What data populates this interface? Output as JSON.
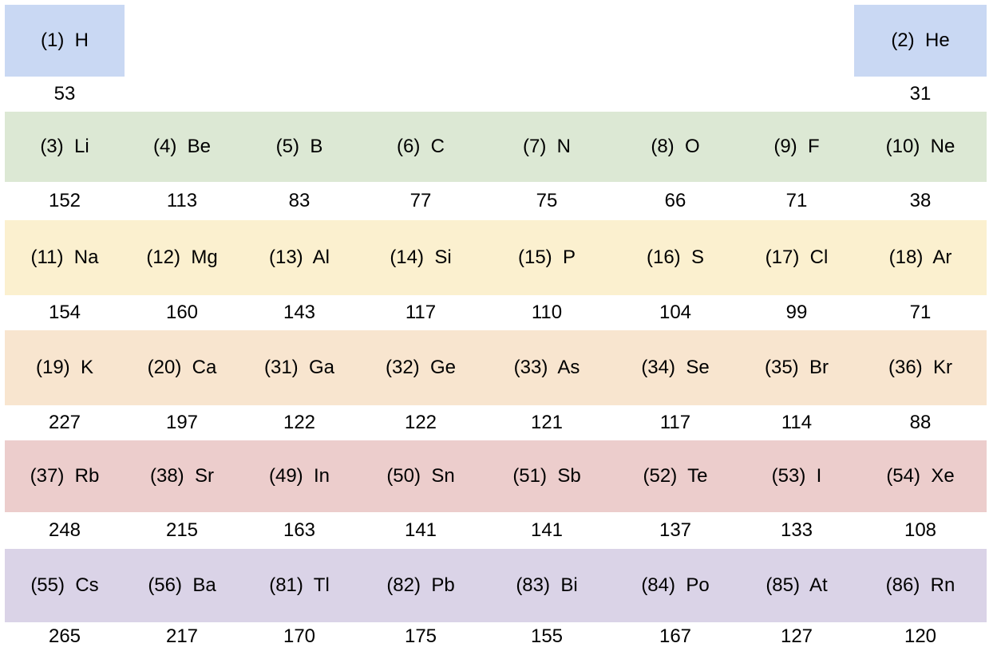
{
  "chart_data": {
    "type": "table",
    "band_colors": [
      "#c9d8f3",
      "#dce8d4",
      "#fbf0cf",
      "#f8e5cf",
      "#eccdcc",
      "#dad3e7"
    ],
    "rows": [
      [
        {
          "label": "(1)  H",
          "value": "53"
        },
        null,
        null,
        null,
        null,
        null,
        null,
        {
          "label": "(2)  He",
          "value": "31"
        }
      ],
      [
        {
          "label": "(3)  Li",
          "value": "152"
        },
        {
          "label": "(4)  Be",
          "value": "113"
        },
        {
          "label": "(5)  B",
          "value": "83"
        },
        {
          "label": "(6)  C",
          "value": "77"
        },
        {
          "label": "(7)  N",
          "value": "75"
        },
        {
          "label": "(8)  O",
          "value": "66"
        },
        {
          "label": "(9)  F",
          "value": "71"
        },
        {
          "label": "(10)  Ne",
          "value": "38"
        }
      ],
      [
        {
          "label": "(11)  Na",
          "value": "154"
        },
        {
          "label": "(12)  Mg",
          "value": "160"
        },
        {
          "label": "(13)  Al",
          "value": "143"
        },
        {
          "label": "(14)  Si",
          "value": "117"
        },
        {
          "label": "(15)  P",
          "value": "110"
        },
        {
          "label": "(16)  S",
          "value": "104"
        },
        {
          "label": "(17)  Cl",
          "value": "99"
        },
        {
          "label": "(18)  Ar",
          "value": "71"
        }
      ],
      [
        {
          "label": "(19)  K",
          "value": "227"
        },
        {
          "label": "(20)  Ca",
          "value": "197"
        },
        {
          "label": "(31)  Ga",
          "value": "122"
        },
        {
          "label": "(32)  Ge",
          "value": "122"
        },
        {
          "label": "(33)  As",
          "value": "121"
        },
        {
          "label": "(34)  Se",
          "value": "117"
        },
        {
          "label": "(35)  Br",
          "value": "114"
        },
        {
          "label": "(36)  Kr",
          "value": "88"
        }
      ],
      [
        {
          "label": "(37)  Rb",
          "value": "248"
        },
        {
          "label": "(38)  Sr",
          "value": "215"
        },
        {
          "label": "(49)  In",
          "value": "163"
        },
        {
          "label": "(50)  Sn",
          "value": "141"
        },
        {
          "label": "(51)  Sb",
          "value": "141"
        },
        {
          "label": "(52)  Te",
          "value": "137"
        },
        {
          "label": "(53)  I",
          "value": "133"
        },
        {
          "label": "(54)  Xe",
          "value": "108"
        }
      ],
      [
        {
          "label": "(55)  Cs",
          "value": "265"
        },
        {
          "label": "(56)  Ba",
          "value": "217"
        },
        {
          "label": "(81)  Tl",
          "value": "170"
        },
        {
          "label": "(82)  Pb",
          "value": "175"
        },
        {
          "label": "(83)  Bi",
          "value": "155"
        },
        {
          "label": "(84)  Po",
          "value": "167"
        },
        {
          "label": "(85)  At",
          "value": "127"
        },
        {
          "label": "(86)  Rn",
          "value": "120"
        }
      ]
    ]
  }
}
